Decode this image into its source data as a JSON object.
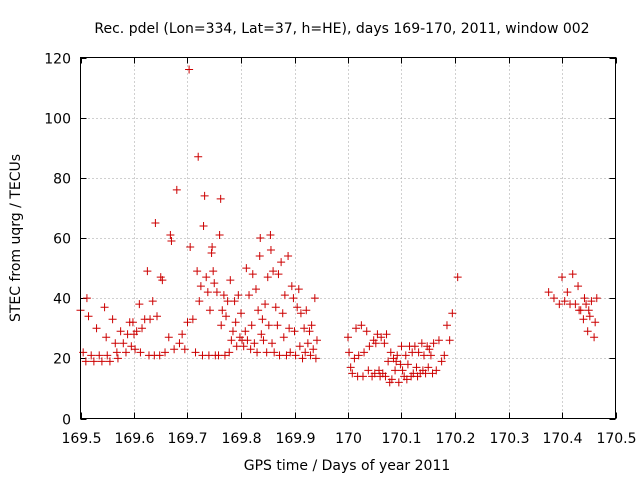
{
  "chart_data": {
    "type": "scatter",
    "title": "Rec. pdel (Lon=334, Lat=37, h=HE), days 169-170, 2011, window 002",
    "xlabel": "GPS time / Days of year 2011",
    "ylabel": "STEC from uqrg / TECUs",
    "xlim": [
      169.5,
      170.5
    ],
    "ylim": [
      0,
      120
    ],
    "xticks": [
      169.5,
      169.6,
      169.7,
      169.8,
      169.9,
      170,
      170.1,
      170.2,
      170.3,
      170.4,
      170.5
    ],
    "xtick_labels": [
      "169.5",
      "169.6",
      "169.7",
      "169.8",
      "169.9",
      "170",
      "170.1",
      "170.2",
      "170.3",
      "170.4",
      "170.5"
    ],
    "yticks": [
      0,
      20,
      40,
      60,
      80,
      100,
      120
    ],
    "ytick_labels": [
      "0",
      "20",
      "40",
      "60",
      "80",
      "100",
      "120"
    ],
    "grid": true,
    "marker": "plus",
    "color": "#cc0000",
    "points": [
      [
        169.5,
        36
      ],
      [
        169.505,
        22
      ],
      [
        169.51,
        19
      ],
      [
        169.512,
        40
      ],
      [
        169.515,
        34
      ],
      [
        169.52,
        21
      ],
      [
        169.525,
        19
      ],
      [
        169.53,
        30
      ],
      [
        169.535,
        21
      ],
      [
        169.54,
        19
      ],
      [
        169.545,
        37
      ],
      [
        169.548,
        27
      ],
      [
        169.55,
        21
      ],
      [
        169.555,
        19
      ],
      [
        169.56,
        33
      ],
      [
        169.565,
        25
      ],
      [
        169.568,
        22
      ],
      [
        169.57,
        20
      ],
      [
        169.575,
        29
      ],
      [
        169.58,
        25
      ],
      [
        169.585,
        22
      ],
      [
        169.588,
        28
      ],
      [
        169.592,
        32
      ],
      [
        169.595,
        24
      ],
      [
        169.598,
        32
      ],
      [
        169.6,
        28
      ],
      [
        169.602,
        23
      ],
      [
        169.605,
        29
      ],
      [
        169.61,
        38
      ],
      [
        169.612,
        22
      ],
      [
        169.615,
        30
      ],
      [
        169.62,
        33
      ],
      [
        169.625,
        49
      ],
      [
        169.628,
        21
      ],
      [
        169.63,
        33
      ],
      [
        169.635,
        39
      ],
      [
        169.638,
        21
      ],
      [
        169.64,
        65
      ],
      [
        169.643,
        34
      ],
      [
        169.648,
        21
      ],
      [
        169.65,
        47
      ],
      [
        169.653,
        46
      ],
      [
        169.658,
        22
      ],
      [
        169.665,
        27
      ],
      [
        169.668,
        61
      ],
      [
        169.67,
        59
      ],
      [
        169.675,
        23
      ],
      [
        169.68,
        76
      ],
      [
        169.685,
        25
      ],
      [
        169.69,
        28
      ],
      [
        169.695,
        23
      ],
      [
        169.7,
        32
      ],
      [
        169.703,
        116
      ],
      [
        169.705,
        57
      ],
      [
        169.71,
        33
      ],
      [
        169.715,
        22
      ],
      [
        169.718,
        49
      ],
      [
        169.72,
        87
      ],
      [
        169.722,
        39
      ],
      [
        169.725,
        44
      ],
      [
        169.728,
        21
      ],
      [
        169.73,
        64
      ],
      [
        169.732,
        74
      ],
      [
        169.735,
        47
      ],
      [
        169.738,
        42
      ],
      [
        169.74,
        21
      ],
      [
        169.742,
        36
      ],
      [
        169.745,
        55
      ],
      [
        169.746,
        57
      ],
      [
        169.748,
        49
      ],
      [
        169.75,
        45
      ],
      [
        169.752,
        21
      ],
      [
        169.755,
        42
      ],
      [
        169.758,
        21
      ],
      [
        169.76,
        61
      ],
      [
        169.762,
        73
      ],
      [
        169.763,
        31
      ],
      [
        169.765,
        36
      ],
      [
        169.768,
        41
      ],
      [
        169.77,
        21
      ],
      [
        169.772,
        34
      ],
      [
        169.775,
        39
      ],
      [
        169.778,
        22
      ],
      [
        169.78,
        46
      ],
      [
        169.782,
        26
      ],
      [
        169.785,
        29
      ],
      [
        169.788,
        39
      ],
      [
        169.79,
        32
      ],
      [
        169.792,
        24
      ],
      [
        169.795,
        41
      ],
      [
        169.798,
        27
      ],
      [
        169.8,
        35
      ],
      [
        169.802,
        26
      ],
      [
        169.805,
        24
      ],
      [
        169.808,
        29
      ],
      [
        169.81,
        50
      ],
      [
        169.812,
        26
      ],
      [
        169.815,
        41
      ],
      [
        169.818,
        23
      ],
      [
        169.82,
        31
      ],
      [
        169.822,
        48
      ],
      [
        169.825,
        25
      ],
      [
        169.828,
        43
      ],
      [
        169.83,
        22
      ],
      [
        169.832,
        36
      ],
      [
        169.835,
        54
      ],
      [
        169.836,
        60
      ],
      [
        169.838,
        28
      ],
      [
        169.84,
        33
      ],
      [
        169.842,
        26
      ],
      [
        169.845,
        38
      ],
      [
        169.848,
        22
      ],
      [
        169.85,
        47
      ],
      [
        169.852,
        31
      ],
      [
        169.855,
        61
      ],
      [
        169.856,
        56
      ],
      [
        169.858,
        25
      ],
      [
        169.86,
        49
      ],
      [
        169.862,
        22
      ],
      [
        169.865,
        37
      ],
      [
        169.868,
        31
      ],
      [
        169.87,
        48
      ],
      [
        169.872,
        21
      ],
      [
        169.875,
        52
      ],
      [
        169.878,
        35
      ],
      [
        169.88,
        27
      ],
      [
        169.882,
        41
      ],
      [
        169.885,
        21
      ],
      [
        169.888,
        54
      ],
      [
        169.89,
        30
      ],
      [
        169.892,
        22
      ],
      [
        169.895,
        44
      ],
      [
        169.898,
        40
      ],
      [
        169.9,
        29
      ],
      [
        169.902,
        21
      ],
      [
        169.905,
        37
      ],
      [
        169.908,
        43
      ],
      [
        169.91,
        24
      ],
      [
        169.912,
        35
      ],
      [
        169.915,
        20
      ],
      [
        169.918,
        30
      ],
      [
        169.92,
        22
      ],
      [
        169.922,
        36
      ],
      [
        169.925,
        25
      ],
      [
        169.928,
        29
      ],
      [
        169.93,
        21
      ],
      [
        169.932,
        31
      ],
      [
        169.935,
        23
      ],
      [
        169.938,
        40
      ],
      [
        169.94,
        20
      ],
      [
        169.942,
        26
      ],
      [
        170.0,
        27
      ],
      [
        170.002,
        22
      ],
      [
        170.005,
        17
      ],
      [
        170.008,
        15
      ],
      [
        170.012,
        20
      ],
      [
        170.015,
        30
      ],
      [
        170.018,
        14
      ],
      [
        170.02,
        21
      ],
      [
        170.025,
        31
      ],
      [
        170.028,
        14
      ],
      [
        170.03,
        22
      ],
      [
        170.035,
        29
      ],
      [
        170.038,
        16
      ],
      [
        170.04,
        24
      ],
      [
        170.045,
        14
      ],
      [
        170.048,
        26
      ],
      [
        170.05,
        15
      ],
      [
        170.052,
        25
      ],
      [
        170.055,
        28
      ],
      [
        170.058,
        16
      ],
      [
        170.06,
        14
      ],
      [
        170.062,
        27
      ],
      [
        170.065,
        15
      ],
      [
        170.068,
        25
      ],
      [
        170.07,
        14
      ],
      [
        170.072,
        28
      ],
      [
        170.075,
        19
      ],
      [
        170.078,
        12
      ],
      [
        170.08,
        22
      ],
      [
        170.082,
        13
      ],
      [
        170.085,
        20
      ],
      [
        170.088,
        16
      ],
      [
        170.09,
        19
      ],
      [
        170.092,
        21
      ],
      [
        170.095,
        12
      ],
      [
        170.098,
        18
      ],
      [
        170.1,
        24
      ],
      [
        170.102,
        16
      ],
      [
        170.105,
        14
      ],
      [
        170.108,
        21
      ],
      [
        170.11,
        13
      ],
      [
        170.112,
        18
      ],
      [
        170.115,
        24
      ],
      [
        170.118,
        14
      ],
      [
        170.12,
        22
      ],
      [
        170.122,
        15
      ],
      [
        170.125,
        24
      ],
      [
        170.128,
        17
      ],
      [
        170.13,
        14
      ],
      [
        170.132,
        22
      ],
      [
        170.135,
        15
      ],
      [
        170.138,
        25
      ],
      [
        170.14,
        16
      ],
      [
        170.142,
        21
      ],
      [
        170.145,
        15
      ],
      [
        170.148,
        24
      ],
      [
        170.15,
        17
      ],
      [
        170.152,
        23
      ],
      [
        170.155,
        21
      ],
      [
        170.158,
        15
      ],
      [
        170.16,
        25
      ],
      [
        170.165,
        16
      ],
      [
        170.17,
        26
      ],
      [
        170.175,
        19
      ],
      [
        170.18,
        21
      ],
      [
        170.185,
        31
      ],
      [
        170.19,
        26
      ],
      [
        170.195,
        35
      ],
      [
        170.205,
        47
      ],
      [
        170.375,
        42
      ],
      [
        170.385,
        40
      ],
      [
        170.395,
        38
      ],
      [
        170.4,
        47
      ],
      [
        170.405,
        39
      ],
      [
        170.41,
        42
      ],
      [
        170.415,
        38
      ],
      [
        170.42,
        48
      ],
      [
        170.425,
        38
      ],
      [
        170.43,
        44
      ],
      [
        170.432,
        36
      ],
      [
        170.435,
        36
      ],
      [
        170.44,
        33
      ],
      [
        170.442,
        40
      ],
      [
        170.445,
        38
      ],
      [
        170.448,
        29
      ],
      [
        170.45,
        36
      ],
      [
        170.452,
        34
      ],
      [
        170.455,
        39
      ],
      [
        170.46,
        27
      ],
      [
        170.462,
        32
      ],
      [
        170.465,
        40
      ]
    ]
  }
}
